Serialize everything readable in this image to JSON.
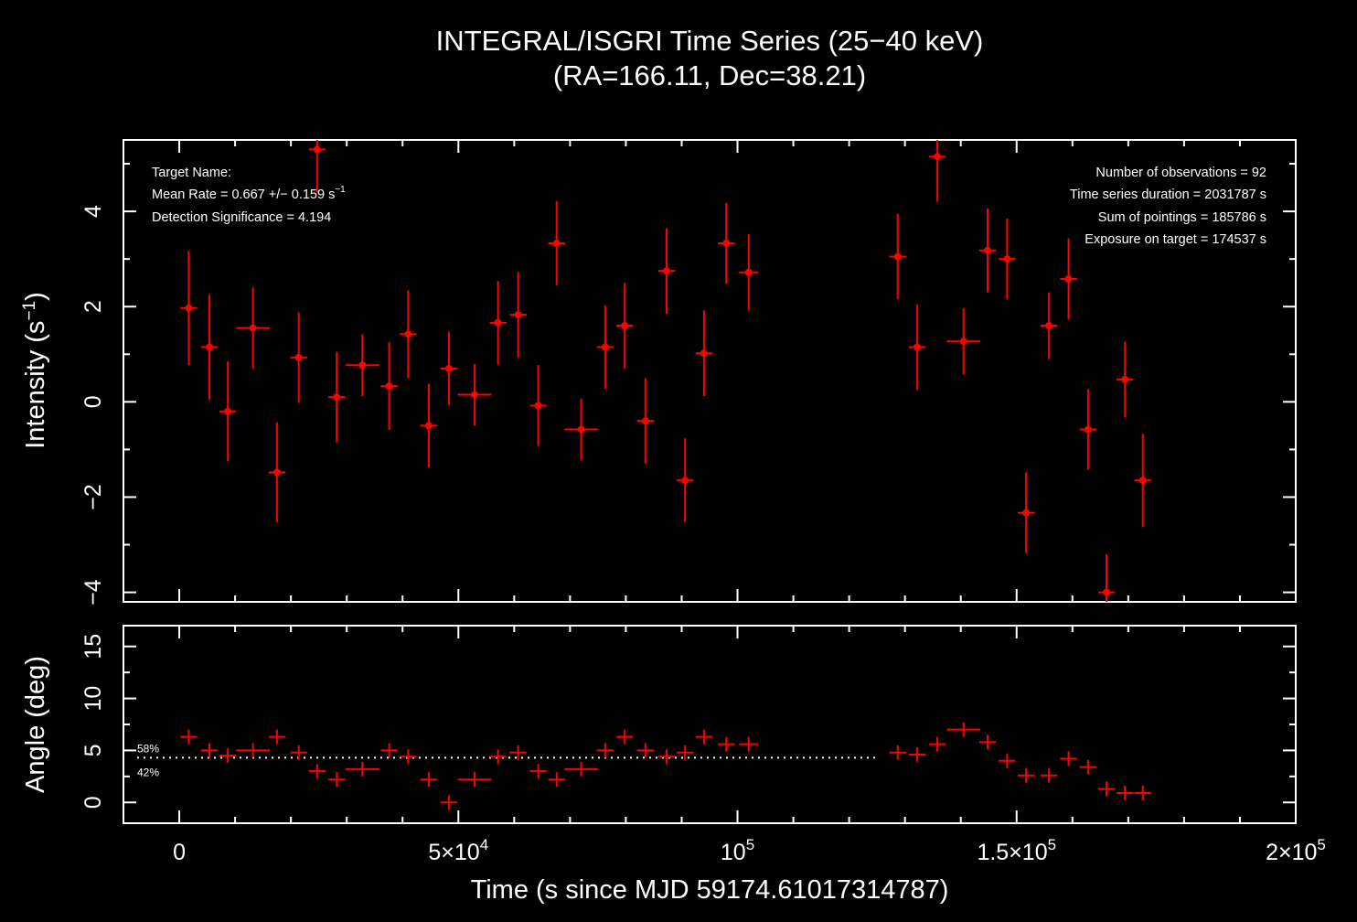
{
  "title_line1": "INTEGRAL/ISGRI Time Series (25−40 keV)",
  "title_line2": "(RA=166.11, Dec=38.21)",
  "colors": {
    "background": "#000000",
    "axes": "#ffffff",
    "data": "#ff0000"
  },
  "info_left": {
    "target": "Target Name:",
    "mean_rate_prefix": "Mean Rate = 0.667 +/− 0.159 s",
    "mean_rate_exp": "−1",
    "significance": "Detection Significance = 4.194"
  },
  "info_right": {
    "nobs": "Number of observations = 92",
    "duration": "Time series duration = 2031787 s",
    "pointings": "Sum of pointings = 185786 s",
    "exposure": "Exposure on target = 174537 s"
  },
  "chart_data": [
    {
      "type": "scatter",
      "panel": "intensity",
      "ylabel_prefix": "Intensity (s",
      "ylabel_exp": "−1",
      "ylabel_suffix": ")",
      "xlim": [
        -10000,
        200000
      ],
      "ylim": [
        -4.2,
        5.5
      ],
      "y_ticks": [
        {
          "v": -4,
          "label": "−4"
        },
        {
          "v": -2,
          "label": "−2"
        },
        {
          "v": 0,
          "label": "0"
        },
        {
          "v": 2,
          "label": "2"
        },
        {
          "v": 4,
          "label": "4"
        }
      ],
      "grid": false,
      "series": [
        {
          "points": [
            {
              "x": 1700,
              "xerr": 1500,
              "y": 1.97,
              "yerr": 1.2
            },
            {
              "x": 5400,
              "xerr": 1500,
              "y": 1.15,
              "yerr": 1.1
            },
            {
              "x": 8700,
              "xerr": 1500,
              "y": -0.2,
              "yerr": 1.05
            },
            {
              "x": 13200,
              "xerr": 3000,
              "y": 1.55,
              "yerr": 0.85
            },
            {
              "x": 17500,
              "xerr": 1500,
              "y": -1.48,
              "yerr": 1.05
            },
            {
              "x": 21400,
              "xerr": 1500,
              "y": 0.93,
              "yerr": 0.95
            },
            {
              "x": 24700,
              "xerr": 1500,
              "y": 5.3,
              "yerr": 0.9
            },
            {
              "x": 28200,
              "xerr": 1500,
              "y": 0.1,
              "yerr": 0.95
            },
            {
              "x": 32800,
              "xerr": 3000,
              "y": 0.77,
              "yerr": 0.65
            },
            {
              "x": 37600,
              "xerr": 1500,
              "y": 0.33,
              "yerr": 0.92
            },
            {
              "x": 41000,
              "xerr": 1500,
              "y": 1.42,
              "yerr": 0.92
            },
            {
              "x": 44700,
              "xerr": 1500,
              "y": -0.5,
              "yerr": 0.88
            },
            {
              "x": 48300,
              "xerr": 1500,
              "y": 0.7,
              "yerr": 0.77
            },
            {
              "x": 52900,
              "xerr": 3000,
              "y": 0.15,
              "yerr": 0.65
            },
            {
              "x": 57100,
              "xerr": 1500,
              "y": 1.66,
              "yerr": 0.88
            },
            {
              "x": 60700,
              "xerr": 1500,
              "y": 1.83,
              "yerr": 0.9
            },
            {
              "x": 64300,
              "xerr": 1500,
              "y": -0.08,
              "yerr": 0.85
            },
            {
              "x": 67600,
              "xerr": 1500,
              "y": 3.33,
              "yerr": 0.88
            },
            {
              "x": 72000,
              "xerr": 3000,
              "y": -0.58,
              "yerr": 0.65
            },
            {
              "x": 76300,
              "xerr": 1500,
              "y": 1.15,
              "yerr": 0.88
            },
            {
              "x": 79800,
              "xerr": 1500,
              "y": 1.6,
              "yerr": 0.9
            },
            {
              "x": 83500,
              "xerr": 1500,
              "y": -0.4,
              "yerr": 0.9
            },
            {
              "x": 87300,
              "xerr": 1500,
              "y": 2.75,
              "yerr": 0.9
            },
            {
              "x": 90600,
              "xerr": 1500,
              "y": -1.65,
              "yerr": 0.88
            },
            {
              "x": 94000,
              "xerr": 1500,
              "y": 1.02,
              "yerr": 0.9
            },
            {
              "x": 98000,
              "xerr": 1500,
              "y": 3.33,
              "yerr": 0.85
            },
            {
              "x": 102000,
              "xerr": 1700,
              "y": 2.72,
              "yerr": 0.8
            },
            {
              "x": 128700,
              "xerr": 1500,
              "y": 3.05,
              "yerr": 0.9
            },
            {
              "x": 132200,
              "xerr": 1500,
              "y": 1.15,
              "yerr": 0.9
            },
            {
              "x": 135800,
              "xerr": 1500,
              "y": 5.15,
              "yerr": 0.95
            },
            {
              "x": 140500,
              "xerr": 3000,
              "y": 1.27,
              "yerr": 0.7
            },
            {
              "x": 144800,
              "xerr": 1500,
              "y": 3.18,
              "yerr": 0.88
            },
            {
              "x": 148300,
              "xerr": 1500,
              "y": 3.0,
              "yerr": 0.85
            },
            {
              "x": 151700,
              "xerr": 1500,
              "y": -2.33,
              "yerr": 0.85
            },
            {
              "x": 155800,
              "xerr": 1500,
              "y": 1.6,
              "yerr": 0.7
            },
            {
              "x": 159300,
              "xerr": 1500,
              "y": 2.58,
              "yerr": 0.85
            },
            {
              "x": 162800,
              "xerr": 1500,
              "y": -0.58,
              "yerr": 0.85
            },
            {
              "x": 166100,
              "xerr": 1500,
              "y": -4.0,
              "yerr": 0.8
            },
            {
              "x": 169400,
              "xerr": 1500,
              "y": 0.47,
              "yerr": 0.8
            },
            {
              "x": 172600,
              "xerr": 1500,
              "y": -1.65,
              "yerr": 0.98
            }
          ]
        }
      ]
    },
    {
      "type": "scatter",
      "panel": "angle",
      "ylabel": "Angle (deg)",
      "xlabel": "Time (s since MJD 59174.61017314787)",
      "xlim": [
        -10000,
        200000
      ],
      "ylim": [
        -2,
        17
      ],
      "x_ticks": [
        {
          "v": 0,
          "label": "0"
        },
        {
          "v": 50000,
          "mant": "5×10",
          "exp": "4"
        },
        {
          "v": 100000,
          "mant": "10",
          "exp": "5"
        },
        {
          "v": 150000,
          "mant": "1.5×10",
          "exp": "5"
        },
        {
          "v": 200000,
          "mant": "2×10",
          "exp": "5"
        }
      ],
      "y_ticks": [
        {
          "v": 0,
          "label": "0"
        },
        {
          "v": 5,
          "label": "5"
        },
        {
          "v": 10,
          "label": "10"
        },
        {
          "v": 15,
          "label": "15"
        }
      ],
      "threshold": {
        "y": 4.3,
        "x_end": 125000,
        "above_label": "58%",
        "below_label": "42%"
      },
      "grid": false,
      "series": [
        {
          "points": [
            {
              "x": 1700,
              "xerr": 1500,
              "y": 6.3
            },
            {
              "x": 5400,
              "xerr": 1500,
              "y": 5.0
            },
            {
              "x": 8700,
              "xerr": 1500,
              "y": 4.5
            },
            {
              "x": 13200,
              "xerr": 3000,
              "y": 5.0
            },
            {
              "x": 17500,
              "xerr": 1500,
              "y": 6.3
            },
            {
              "x": 21400,
              "xerr": 1500,
              "y": 4.8
            },
            {
              "x": 24700,
              "xerr": 1500,
              "y": 3.0
            },
            {
              "x": 28200,
              "xerr": 1500,
              "y": 2.2
            },
            {
              "x": 32800,
              "xerr": 3000,
              "y": 3.2
            },
            {
              "x": 37600,
              "xerr": 1500,
              "y": 5.0
            },
            {
              "x": 41000,
              "xerr": 1500,
              "y": 4.4
            },
            {
              "x": 44700,
              "xerr": 1500,
              "y": 2.2
            },
            {
              "x": 48300,
              "xerr": 1500,
              "y": 0.0
            },
            {
              "x": 52900,
              "xerr": 3000,
              "y": 2.2
            },
            {
              "x": 57100,
              "xerr": 1500,
              "y": 4.4
            },
            {
              "x": 60700,
              "xerr": 1500,
              "y": 4.8
            },
            {
              "x": 64300,
              "xerr": 1500,
              "y": 3.0
            },
            {
              "x": 67600,
              "xerr": 1500,
              "y": 2.2
            },
            {
              "x": 72000,
              "xerr": 3000,
              "y": 3.2
            },
            {
              "x": 76300,
              "xerr": 1500,
              "y": 5.0
            },
            {
              "x": 79800,
              "xerr": 1500,
              "y": 6.3
            },
            {
              "x": 83500,
              "xerr": 1500,
              "y": 5.0
            },
            {
              "x": 87300,
              "xerr": 1500,
              "y": 4.4
            },
            {
              "x": 90600,
              "xerr": 1500,
              "y": 4.8
            },
            {
              "x": 94000,
              "xerr": 1500,
              "y": 6.3
            },
            {
              "x": 98000,
              "xerr": 1500,
              "y": 5.6
            },
            {
              "x": 102000,
              "xerr": 1700,
              "y": 5.6
            },
            {
              "x": 128700,
              "xerr": 1500,
              "y": 4.8
            },
            {
              "x": 132200,
              "xerr": 1500,
              "y": 4.6
            },
            {
              "x": 135800,
              "xerr": 1500,
              "y": 5.6
            },
            {
              "x": 140500,
              "xerr": 3000,
              "y": 7.0
            },
            {
              "x": 144800,
              "xerr": 1500,
              "y": 5.8
            },
            {
              "x": 148300,
              "xerr": 1500,
              "y": 4.0
            },
            {
              "x": 151700,
              "xerr": 1500,
              "y": 2.6
            },
            {
              "x": 155800,
              "xerr": 1500,
              "y": 2.6
            },
            {
              "x": 159300,
              "xerr": 1500,
              "y": 4.2
            },
            {
              "x": 162800,
              "xerr": 1500,
              "y": 3.4
            },
            {
              "x": 166100,
              "xerr": 1500,
              "y": 1.3
            },
            {
              "x": 169400,
              "xerr": 1500,
              "y": 0.9
            },
            {
              "x": 172600,
              "xerr": 1500,
              "y": 0.9
            }
          ]
        }
      ]
    }
  ]
}
